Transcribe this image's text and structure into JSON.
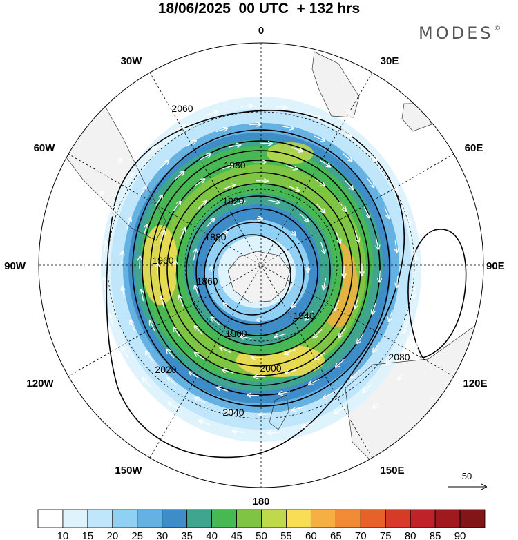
{
  "header": {
    "title": "18/06/2025  00 UTC  + 132 hrs",
    "brand": "MODES",
    "brand_mark": "©"
  },
  "map": {
    "projection": "south-polar-stereographic",
    "longitude_labels": [
      "0",
      "30E",
      "60E",
      "90E",
      "120E",
      "150E",
      "180",
      "150W",
      "120W",
      "90W",
      "60W",
      "30W"
    ],
    "contour_labels": [
      "1860",
      "1880",
      "1900",
      "1920",
      "1940",
      "1960",
      "1980",
      "2000",
      "2020",
      "2040",
      "2060",
      "2080"
    ],
    "land_color": "#f2f2f2"
  },
  "legend": {
    "vector_ref_label": "50",
    "colorbar_labels": [
      "10",
      "15",
      "20",
      "25",
      "30",
      "35",
      "40",
      "45",
      "50",
      "55",
      "60",
      "65",
      "70",
      "75",
      "80",
      "85",
      "90"
    ],
    "colors": [
      "#ffffff",
      "#dff3fc",
      "#bfe6fa",
      "#8fd0f4",
      "#65b1e2",
      "#3f8dc8",
      "#3fa58f",
      "#47b853",
      "#7dc543",
      "#bfd94a",
      "#f8dd55",
      "#f6b042",
      "#f18a34",
      "#e8612b",
      "#d83a2a",
      "#c12229",
      "#a01a1d",
      "#821517"
    ]
  }
}
